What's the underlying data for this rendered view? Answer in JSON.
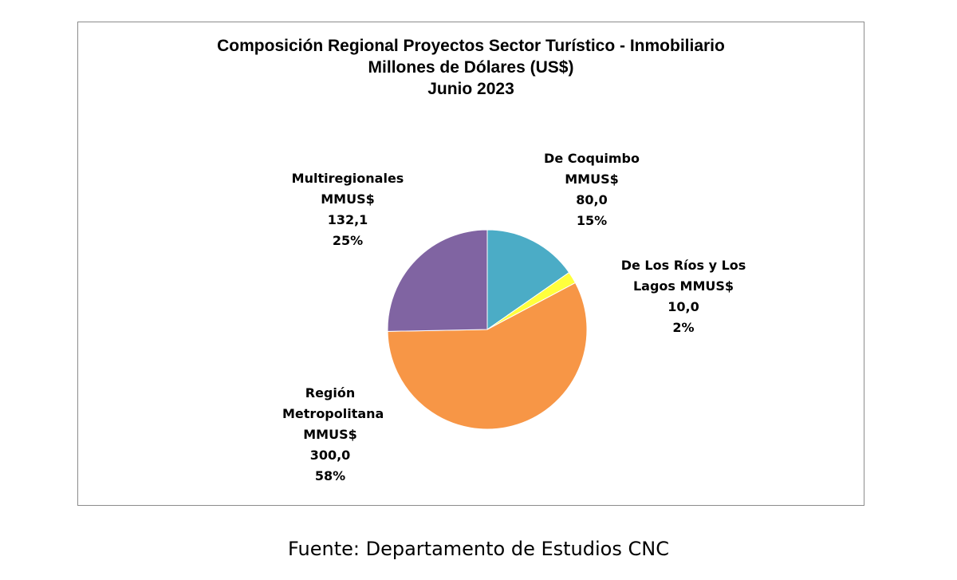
{
  "chart_data": {
    "type": "pie",
    "title": "Composición Regional Proyectos Sector Turístico - Inmobiliario",
    "subtitle": "Millones de Dólares (US$)",
    "date_line": "Junio 2023",
    "slices": [
      {
        "name": "De Coquimbo",
        "unit": "MMUS$",
        "value": 80.0,
        "value_label": "80,0",
        "percent_label": "15%",
        "color": "#4bacc6"
      },
      {
        "name": "De Los Ríos y Los Lagos",
        "unit": "MMUS$",
        "value": 10.0,
        "value_label": "10,0",
        "percent_label": "2%",
        "color": "#ffff3c"
      },
      {
        "name": "Región Metropolitana",
        "unit": "MMUS$",
        "value": 300.0,
        "value_label": "300,0",
        "percent_label": "58%",
        "color": "#f79646"
      },
      {
        "name": "Multiregionales",
        "unit": "MMUS$",
        "value": 132.1,
        "value_label": "132,1",
        "percent_label": "25%",
        "color": "#8064a2"
      }
    ],
    "legend": "none"
  },
  "source_text": "Fuente: Departamento de Estudios CNC"
}
